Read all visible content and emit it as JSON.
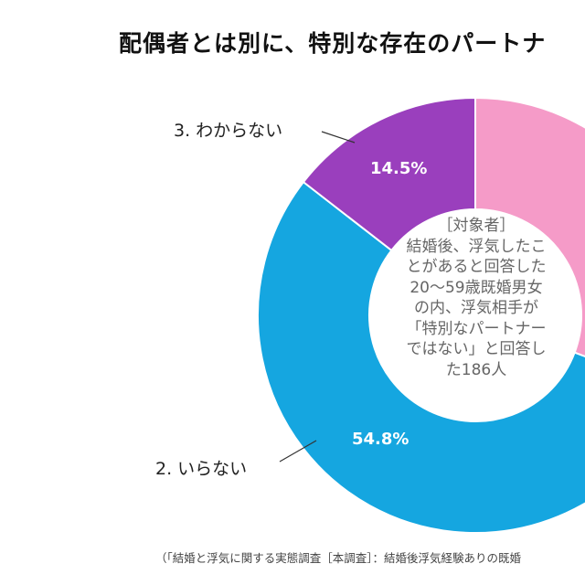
{
  "chart_data": {
    "type": "pie",
    "donut": true,
    "title": "配偶者とは別に、特別な存在のパートナ",
    "slices": [
      {
        "label": "",
        "value": 30.7,
        "color": "#f59bc8"
      },
      {
        "label": "2. いらない",
        "value": 54.8,
        "value_label": "54.8%",
        "color": "#15a6e0"
      },
      {
        "label": "3. わからない",
        "value": 14.5,
        "value_label": "14.5%",
        "color": "#9a3fbd"
      }
    ],
    "center_text": "［対象者］\n結婚後、浮気したこ\nとがあると回答した\n20～59歳既婚男女\nの内、浮気相手が\n「特別なパートナー\nではない」と回答し\nた186人",
    "footnote": "（「結婚と浮気に関する実態調査［本調査］：結婚後浮気経験ありの既婚"
  }
}
